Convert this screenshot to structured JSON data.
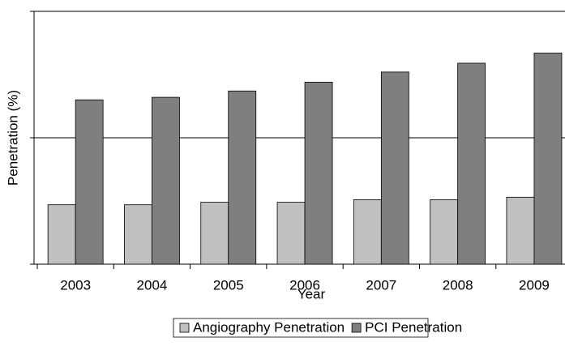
{
  "chart_data": {
    "type": "bar",
    "x_label": "Year",
    "y_label": "Penetration (%)",
    "categories": [
      "2003",
      "2004",
      "2005",
      "2006",
      "2007",
      "2008",
      "2009"
    ],
    "series": [
      {
        "name": "Angiography Penetration",
        "color": "#c0c0c0",
        "values": [
          0.47,
          0.47,
          0.49,
          0.49,
          0.51,
          0.51,
          0.53
        ]
      },
      {
        "name": "PCI Penetration",
        "color": "#7f7f7f",
        "values": [
          1.3,
          1.32,
          1.37,
          1.44,
          1.52,
          1.59,
          1.67
        ]
      }
    ],
    "ylim": [
      0,
      2
    ],
    "yticks": [
      0,
      1,
      2
    ],
    "grid": true,
    "legend": "bottom"
  }
}
